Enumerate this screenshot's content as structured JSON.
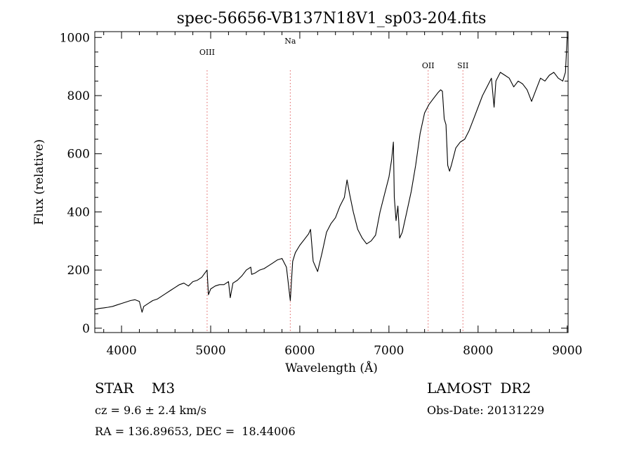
{
  "chart_data": {
    "type": "line",
    "title": "spec-56656-VB137N18V1_sp03-204.fits",
    "xlabel": "Wavelength (Å)",
    "ylabel": "Flux (relative)",
    "xlim": [
      3700,
      9010
    ],
    "ylim": [
      -15,
      1020
    ],
    "xticks": [
      4000,
      5000,
      6000,
      7000,
      8000,
      9000
    ],
    "yticks": [
      0,
      200,
      400,
      600,
      800,
      1000
    ],
    "grid": false,
    "line_color": "#000000",
    "marker_color": "#e06060",
    "spectral_lines": [
      {
        "label": "OIII",
        "wavelength": 4960
      },
      {
        "label": "Na",
        "wavelength": 5893
      },
      {
        "label": "OII",
        "wavelength": 7440
      },
      {
        "label": "SII",
        "wavelength": 7830
      }
    ],
    "series": [
      {
        "x": [
          3700,
          3750,
          3800,
          3850,
          3900,
          3950,
          4000,
          4050,
          4100,
          4150,
          4200,
          4230,
          4250,
          4300,
          4350,
          4400,
          4450,
          4500,
          4550,
          4600,
          4650,
          4700,
          4750,
          4800,
          4850,
          4900,
          4960,
          4975,
          5000,
          5050,
          5100,
          5150,
          5200,
          5220,
          5250,
          5300,
          5350,
          5400,
          5450,
          5460,
          5500,
          5550,
          5600,
          5650,
          5700,
          5750,
          5800,
          5850,
          5893,
          5920,
          5950,
          6000,
          6050,
          6100,
          6120,
          6150,
          6200,
          6250,
          6300,
          6350,
          6400,
          6450,
          6500,
          6530,
          6560,
          6600,
          6650,
          6700,
          6750,
          6800,
          6850,
          6900,
          6950,
          7000,
          7030,
          7050,
          7060,
          7080,
          7100,
          7120,
          7150,
          7200,
          7250,
          7300,
          7350,
          7400,
          7450,
          7500,
          7550,
          7580,
          7600,
          7620,
          7640,
          7660,
          7680,
          7700,
          7750,
          7800,
          7850,
          7900,
          7950,
          8000,
          8050,
          8100,
          8150,
          8180,
          8200,
          8250,
          8300,
          8350,
          8400,
          8450,
          8500,
          8550,
          8600,
          8650,
          8700,
          8750,
          8800,
          8850,
          8900,
          8950,
          8980,
          9000
        ],
        "y": [
          65,
          68,
          70,
          72,
          75,
          80,
          85,
          90,
          95,
          98,
          92,
          55,
          75,
          85,
          95,
          100,
          110,
          120,
          130,
          140,
          150,
          155,
          145,
          160,
          165,
          175,
          200,
          115,
          135,
          145,
          150,
          150,
          160,
          105,
          155,
          165,
          180,
          200,
          210,
          185,
          190,
          200,
          205,
          215,
          225,
          235,
          240,
          210,
          95,
          230,
          260,
          285,
          305,
          325,
          340,
          230,
          195,
          260,
          330,
          360,
          380,
          420,
          450,
          510,
          460,
          400,
          340,
          310,
          290,
          300,
          320,
          400,
          460,
          520,
          580,
          640,
          450,
          370,
          420,
          310,
          330,
          400,
          470,
          560,
          670,
          740,
          770,
          790,
          810,
          820,
          815,
          720,
          700,
          560,
          540,
          560,
          620,
          640,
          650,
          680,
          720,
          760,
          800,
          830,
          860,
          760,
          850,
          880,
          870,
          860,
          830,
          850,
          840,
          820,
          780,
          820,
          860,
          850,
          870,
          880,
          860,
          850,
          880,
          1000
        ]
      }
    ]
  },
  "annotations": {
    "object_line": "STAR    M3",
    "survey": "LAMOST  DR2",
    "redshift": "cz = 9.6 ± 2.4 km/s",
    "obs_date": "Obs-Date: 20131229",
    "coordinates": "RA = 136.89653, DEC =  18.44006"
  }
}
